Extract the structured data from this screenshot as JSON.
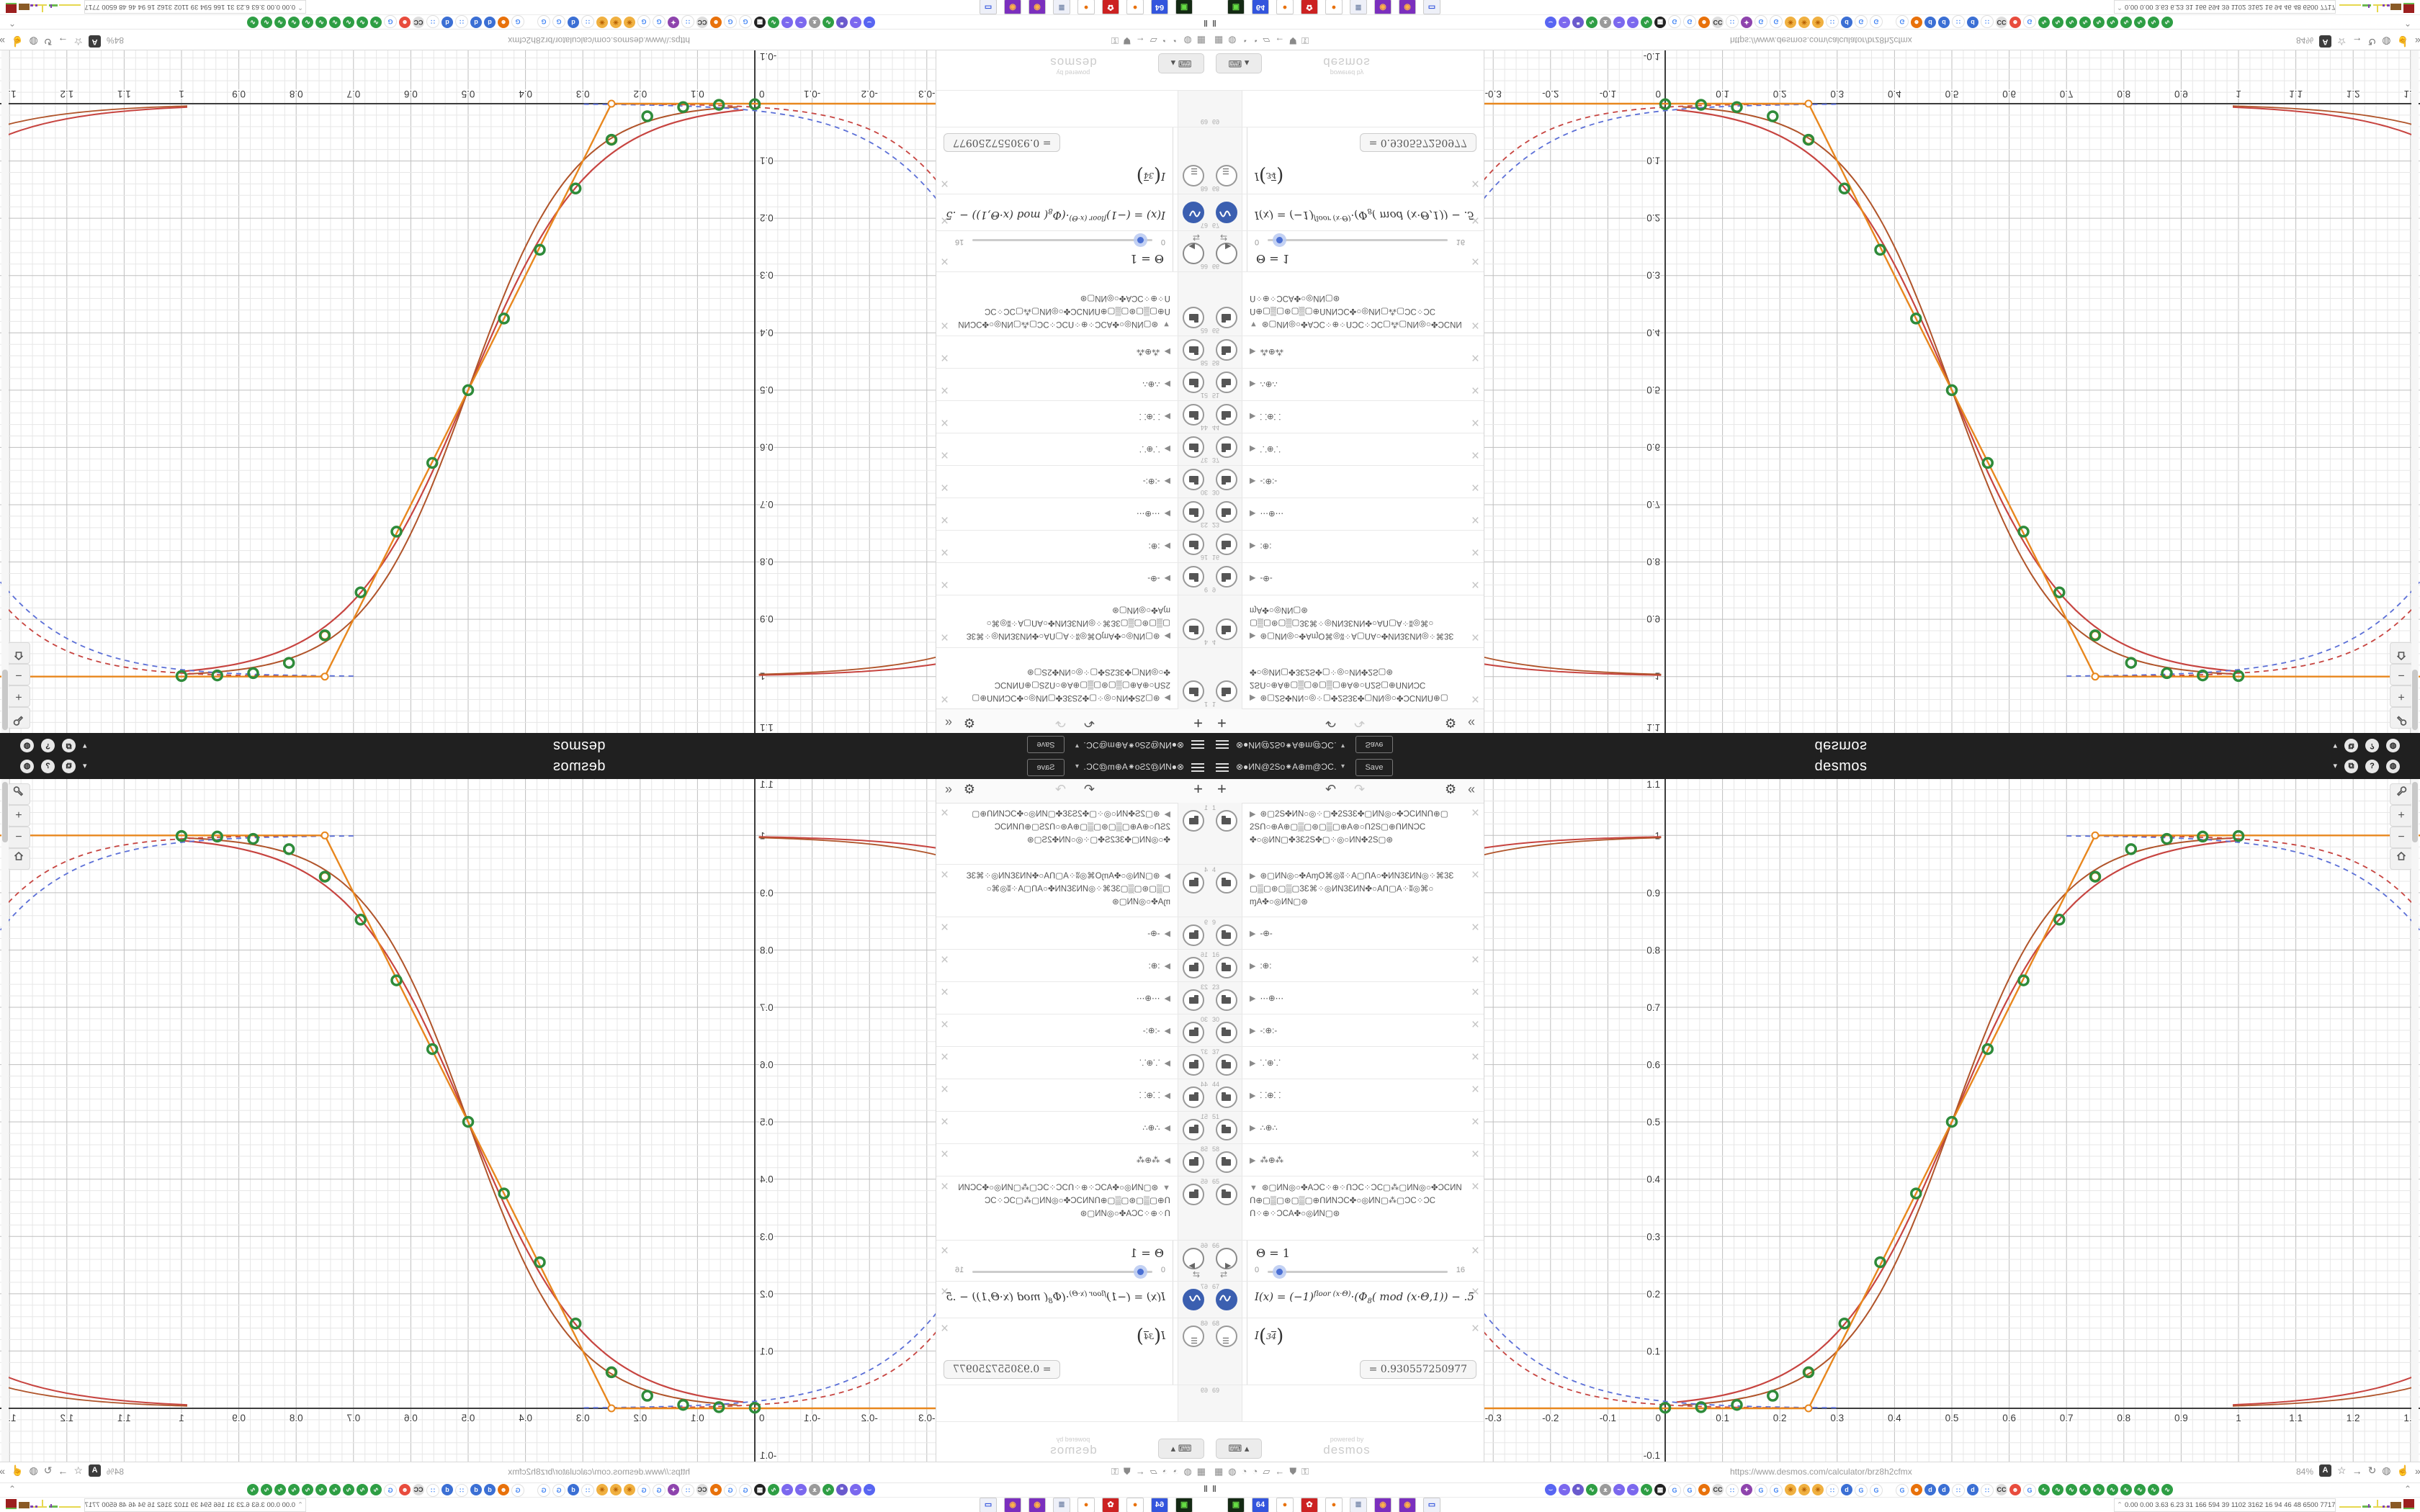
{
  "bar": {
    "title": "⊗●ИN@2So⁕A⊕m@ƆC…",
    "save_label": "Save",
    "wordmark": "desmos",
    "caret": "▾",
    "right_icons": [
      {
        "name": "caret-down-icon",
        "glyph": "▾"
      },
      {
        "name": "share-icon",
        "glyph": "⧉"
      },
      {
        "name": "help-icon",
        "glyph": "?"
      },
      {
        "name": "globe-icon",
        "glyph": "◍"
      }
    ]
  },
  "panel": {
    "toolbar": {
      "add": "+",
      "undo": "↶",
      "redo": "↷",
      "settings": "⚙",
      "collapse": "«"
    },
    "rows": [
      {
        "type": "folder3",
        "index": "1",
        "open": false,
        "lines": [
          "⊛▢2S✤ИN○◎⁘▢✤2S3Ɛ✤▢ИN◎○✤ƆCИNՈ⊕▢",
          "2SՈ○⊕A⊕▢▒▢⊛▢▒▢⊕A⊛○Ո2S▢⊕ՈИNƆC",
          "✤○◎ИN▢✤3Ɛ2S✤▢⁘◎○ИN✤2S▢⊛"
        ]
      },
      {
        "type": "folder3",
        "index": "4",
        "open": false,
        "lines": [
          "⊛▢ИN◎○✤AɱO⌘◎ʬ⁘A▢ՈA○✤ИN3ƐИN◎⁘⌘3Ɛ",
          "▢▒▢⊛▢▒▢3Ɛ⌘⁘◎ИN3ƐИN✤○AՈ▢A⁘ʬ◎⌘○",
          "ɱA✤○◎ИN▢⊛"
        ]
      },
      {
        "type": "folder1",
        "index": "9",
        "title": "-⊕-"
      },
      {
        "type": "folder1",
        "index": "16",
        "title": ":⊕:"
      },
      {
        "type": "folder1",
        "index": "23",
        "title": "⋯⊕⋯"
      },
      {
        "type": "folder1",
        "index": "30",
        "title": "-:⊕:-"
      },
      {
        "type": "folder1",
        "index": "37",
        "title": "⸪⊕⸪"
      },
      {
        "type": "folder1",
        "index": "44",
        "title": "⸬⊕⸬"
      },
      {
        "type": "folder1",
        "index": "51",
        "title": "∴⊕∴"
      },
      {
        "type": "folder1",
        "index": "58",
        "title": "⁂⊕⁂"
      },
      {
        "type": "folder3",
        "index": "65",
        "open": true,
        "lines": [
          "⊛▢ИN◎○✤AƆC⁘⊕⁘ՈƆC⁘ƆC▢⁂▢ИN◎○✤ƆCИN",
          "Ո⊕▢▒▢⊛▢▒▢⊕ՈИNƆC✤○◎ИN▢⁂▢ƆC⁘ƆC",
          "Ո⁘⊕⁘ƆCA✤○◎ИN▢⊛"
        ]
      },
      {
        "type": "slider",
        "index": "66",
        "label": "Θ = 1",
        "min": "0",
        "max": "16",
        "frac": 0.0625
      },
      {
        "type": "math",
        "index": "67",
        "pre": "I(x) = (−1)",
        "sup": "floor (x·Θ)",
        "mid": "·(Φ",
        "sub": "8",
        "tail": "( mod (x·Θ,1)) − .5"
      },
      {
        "type": "eval",
        "index": "68",
        "fn": "I",
        "num": "3",
        "den": "4",
        "value": "= 0.930557250977"
      },
      {
        "type": "blank",
        "index": "69"
      }
    ],
    "keyboard_label": "⌨ ▴",
    "powered_by_1": "powered by",
    "powered_by_2": "desmos"
  },
  "graph_controls": {
    "wrench": "🔧",
    "zoom_in": "+",
    "zoom_out": "−",
    "home": "⌂"
  },
  "chrome": {
    "url": "https://www.desmos.com/calculator/brz8h2cfmx",
    "zoom_level": "84%",
    "addr_left_icons": [
      {
        "name": "trash-icon",
        "glyph": "▦"
      },
      {
        "name": "globe-icon",
        "glyph": "◍"
      },
      {
        "name": "gauge-icon",
        "glyph": "◔"
      },
      {
        "name": "gauge-icon",
        "glyph": "◔"
      },
      {
        "name": "folder-icon",
        "glyph": "▱"
      },
      {
        "name": "back-icon",
        "glyph": "←"
      },
      {
        "name": "shield-icon",
        "glyph": "⛊"
      },
      {
        "name": "lock-icon",
        "glyph": "⚿"
      }
    ],
    "addr_right_icons": [
      {
        "name": "translate-icon",
        "glyph": "A",
        "box": true
      },
      {
        "name": "star-icon",
        "glyph": "☆"
      },
      {
        "name": "arrow-right-icon",
        "glyph": "→"
      },
      {
        "name": "reload-icon",
        "glyph": "↻"
      },
      {
        "name": "globe-icon",
        "glyph": "◍"
      },
      {
        "name": "thumbs-up-icon",
        "glyph": "☝"
      },
      {
        "name": "chevrons-icon",
        "glyph": "»"
      },
      {
        "name": "menu-icon",
        "glyph": "≡"
      }
    ],
    "pause_glyph": "‖",
    "bookmarks_caret": "⌃",
    "bookmarks": [
      {
        "bg": "#5865F2",
        "fg": "#fff",
        "ch": "⌣"
      },
      {
        "bg": "#7b68ee",
        "fg": "#fff",
        "ch": "~"
      },
      {
        "bg": "#6a5acd",
        "fg": "#fff",
        "ch": "❝"
      },
      {
        "bg": "#2e9e44",
        "fg": "#fff",
        "ch": "∿"
      },
      {
        "bg": "#9a9a9a",
        "fg": "#fff",
        "ch": "ᴥ"
      },
      {
        "bg": "#7b68ee",
        "fg": "#fff",
        "ch": "~"
      },
      {
        "bg": "#7b68ee",
        "fg": "#fff",
        "ch": "~"
      },
      {
        "bg": "#2e9e44",
        "fg": "#fff",
        "ch": "∿"
      },
      {
        "bg": "#222222",
        "fg": "#fff",
        "ch": "▦"
      },
      {
        "bg": "#ffffff",
        "fg": "#4285F4",
        "ch": "G"
      },
      {
        "bg": "#ffffff",
        "fg": "#4285F4",
        "ch": "G"
      },
      {
        "bg": "#e8710a",
        "fg": "#fff",
        "ch": "☻"
      },
      {
        "bg": "#dddddd",
        "fg": "#333",
        "ch": "CC"
      },
      {
        "bg": "#ffffff",
        "fg": "#4285F4",
        "ch": "∷"
      },
      {
        "bg": "#8e44ad",
        "fg": "#fff",
        "ch": "✦"
      },
      {
        "bg": "#ffffff",
        "fg": "#4285F4",
        "ch": "G"
      },
      {
        "bg": "#ffffff",
        "fg": "#4285F4",
        "ch": "G"
      },
      {
        "bg": "#f0b040",
        "fg": "#b35c00",
        "ch": "✳"
      },
      {
        "bg": "#f0b040",
        "fg": "#b35c00",
        "ch": "✳"
      },
      {
        "bg": "#f0b040",
        "fg": "#b35c00",
        "ch": "✳"
      },
      {
        "bg": "#ffffff",
        "fg": "#4285F4",
        "ch": "∷"
      },
      {
        "bg": "#3b6fd4",
        "fg": "#fff",
        "ch": "d"
      },
      {
        "bg": "#ffffff",
        "fg": "#4285F4",
        "ch": "G"
      },
      {
        "bg": "#ffffff",
        "fg": "#4285F4",
        "ch": "G"
      },
      {
        "gap": true
      },
      {
        "bg": "#ffffff",
        "fg": "#4285F4",
        "ch": "G"
      },
      {
        "bg": "#e8710a",
        "fg": "#fff",
        "ch": "☻"
      },
      {
        "bg": "#3b6fd4",
        "fg": "#fff",
        "ch": "d"
      },
      {
        "bg": "#3b6fd4",
        "fg": "#fff",
        "ch": "d"
      },
      {
        "bg": "#ffffff",
        "fg": "#4285F4",
        "ch": "∷"
      },
      {
        "bg": "#3b6fd4",
        "fg": "#fff",
        "ch": "d"
      },
      {
        "bg": "#ffffff",
        "fg": "#4285F4",
        "ch": "∷"
      },
      {
        "bg": "#dddddd",
        "fg": "#333",
        "ch": "CC"
      },
      {
        "bg": "#e84c3d",
        "fg": "#fff",
        "ch": "☻"
      },
      {
        "bg": "#ffffff",
        "fg": "#4285F4",
        "ch": "G"
      },
      {
        "bg": "#2e9e44",
        "fg": "#fff",
        "ch": "∿"
      },
      {
        "bg": "#2e9e44",
        "fg": "#fff",
        "ch": "∿"
      },
      {
        "bg": "#2e9e44",
        "fg": "#fff",
        "ch": "∿"
      },
      {
        "bg": "#2e9e44",
        "fg": "#fff",
        "ch": "∿"
      },
      {
        "bg": "#2e9e44",
        "fg": "#fff",
        "ch": "∿"
      },
      {
        "bg": "#2e9e44",
        "fg": "#fff",
        "ch": "∿"
      },
      {
        "bg": "#2e9e44",
        "fg": "#fff",
        "ch": "∿"
      },
      {
        "bg": "#2e9e44",
        "fg": "#fff",
        "ch": "∿"
      },
      {
        "bg": "#2e9e44",
        "fg": "#fff",
        "ch": "∿"
      },
      {
        "bg": "#2e9e44",
        "fg": "#fff",
        "ch": "∿"
      }
    ],
    "taskbar": [
      {
        "bg": "#142a14",
        "fg": "#66dd44",
        "ch": "▣"
      },
      {
        "bg": "#3355dd",
        "fg": "#fff",
        "ch": "64"
      },
      {
        "bg": "#ffffff",
        "fg": "#e8710a",
        "ch": "●"
      },
      {
        "bg": "#cc2222",
        "fg": "#fff",
        "ch": "✿"
      },
      {
        "bg": "#ffffff",
        "fg": "#e8710a",
        "ch": "●"
      },
      {
        "bg": "#eef0f8",
        "fg": "#7788aa",
        "ch": "≣"
      },
      {
        "bg": "#7b2fbe",
        "fg": "#ffb347",
        "ch": "◉"
      },
      {
        "bg": "#7b2fbe",
        "fg": "#ffb347",
        "ch": "◉"
      },
      {
        "bg": "#eef0f8",
        "fg": "#3355dd",
        "ch": "▭"
      }
    ],
    "perf_text": "0.00 0.00 3.63 6.23  31  166  594  39  1102 3162  16  94  46  48  6500 7717",
    "spark_bars": [
      [
        2,
        30,
        13,
        2,
        "#e6d84f"
      ],
      [
        34,
        12,
        12,
        3,
        "#6cb94f"
      ],
      [
        49,
        20,
        13,
        2,
        "#e6d84f"
      ],
      [
        42,
        2,
        10,
        5,
        "#8040b0"
      ],
      [
        54,
        2,
        4,
        11,
        "#e6d84f"
      ],
      [
        62,
        3,
        12,
        3,
        "#8040b0"
      ],
      [
        68,
        4,
        12,
        3,
        "#8040b0"
      ],
      [
        73,
        15,
        7,
        9,
        "#8a5a25"
      ],
      [
        91,
        15,
        3,
        12,
        "#9c1f1f"
      ],
      [
        91,
        15,
        15,
        2,
        "#6cb94f"
      ]
    ]
  },
  "chart_data": {
    "type": "line",
    "title": "",
    "xlabel": "",
    "ylabel": "",
    "x_range": [
      -0.317,
      1.317
    ],
    "y_range": [
      -0.093,
      1.098
    ],
    "grid": {
      "minor_step": 0.02,
      "major_step": 0.1,
      "on": true
    },
    "x_ticks": [
      -0.3,
      -0.2,
      -0.1,
      0,
      0.1,
      0.2,
      0.3,
      0.4,
      0.5,
      0.6,
      0.7,
      0.8,
      0.9,
      1,
      1.1,
      1.2,
      1.3
    ],
    "y_ticks": [
      -0.1,
      0.1,
      0.2,
      0.3,
      0.4,
      0.5,
      0.6,
      0.7,
      0.8,
      0.9,
      1,
      1.1
    ],
    "points_series": {
      "name": "sample-points",
      "color": "#2e8b3a",
      "x_start": 0,
      "x_step": 0.0625,
      "values": [
        0.001,
        0.002,
        0.006,
        0.022,
        0.063,
        0.148,
        0.255,
        0.375,
        0.5,
        0.627,
        0.747,
        0.853,
        0.928,
        0.976,
        0.994,
        0.998,
        0.999
      ]
    },
    "tangent_line": {
      "color": "#e8871e",
      "vertices": [
        [
          -0.317,
          0
        ],
        [
          0.25,
          0
        ],
        [
          0.75,
          1
        ],
        [
          1.317,
          1
        ]
      ],
      "corner_markers": [
        [
          0.25,
          0
        ],
        [
          0.75,
          1
        ]
      ],
      "curve_markers": [
        [
          0.25,
          0.063
        ],
        [
          0.75,
          0.928
        ]
      ]
    },
    "logistic_curves": [
      {
        "name": "sigmoid-red",
        "color": "#c74440",
        "width": 2.2,
        "dash": "",
        "k": 9.4,
        "center": 0.5,
        "desc": false,
        "range": [
          0.02,
          1.0
        ]
      },
      {
        "name": "sigmoid-brown",
        "color": "#b0542a",
        "width": 2,
        "dash": "",
        "k": 11,
        "center": 0.5,
        "desc": false,
        "range": [
          0.03,
          0.99
        ]
      },
      {
        "name": "dashed-blue-left",
        "color": "#5b6fd7",
        "width": 1.8,
        "dash": "7 6",
        "k": 8.8,
        "center": -0.5,
        "desc": true,
        "range": [
          -0.317,
          0.3
        ]
      },
      {
        "name": "dashed-red-left",
        "color": "#c74440",
        "width": 1.8,
        "dash": "7 6",
        "k": 10.2,
        "center": -0.5,
        "desc": true,
        "range": [
          -0.317,
          0.25
        ]
      },
      {
        "name": "dashed-blue-right",
        "color": "#5b6fd7",
        "width": 1.8,
        "dash": "7 6",
        "k": 8.8,
        "center": 1.5,
        "desc": true,
        "range": [
          0.7,
          1.317
        ]
      },
      {
        "name": "dashed-red-right",
        "color": "#c74440",
        "width": 1.8,
        "dash": "7 6",
        "k": 10.2,
        "center": 1.5,
        "desc": true,
        "range": [
          0.75,
          1.317
        ]
      }
    ],
    "edge_curves": [
      {
        "name": "red-top-left",
        "color": "#c74440",
        "a": 0.022,
        "decay": 7,
        "side": "left",
        "width": 2
      },
      {
        "name": "brown-top-left",
        "color": "#b0542a",
        "a": 0.034,
        "decay": 7,
        "side": "left",
        "width": 1.8
      },
      {
        "name": "red-bottom-right",
        "color": "#c74440",
        "a": 0.06,
        "decay": 7,
        "side": "right",
        "width": 2
      },
      {
        "name": "brown-bottom-right",
        "color": "#b0542a",
        "a": 0.04,
        "decay": 7,
        "side": "right",
        "width": 1.8
      }
    ],
    "slider": {
      "name": "Θ",
      "value": 1,
      "min": 0,
      "max": 16
    },
    "expression": "I(x) = (-1)^floor(x·Θ)·(Φ8( mod (x·Θ,1)) − .5",
    "evaluation": {
      "expr": "I(3/4)",
      "value": "0.930557250977"
    }
  }
}
